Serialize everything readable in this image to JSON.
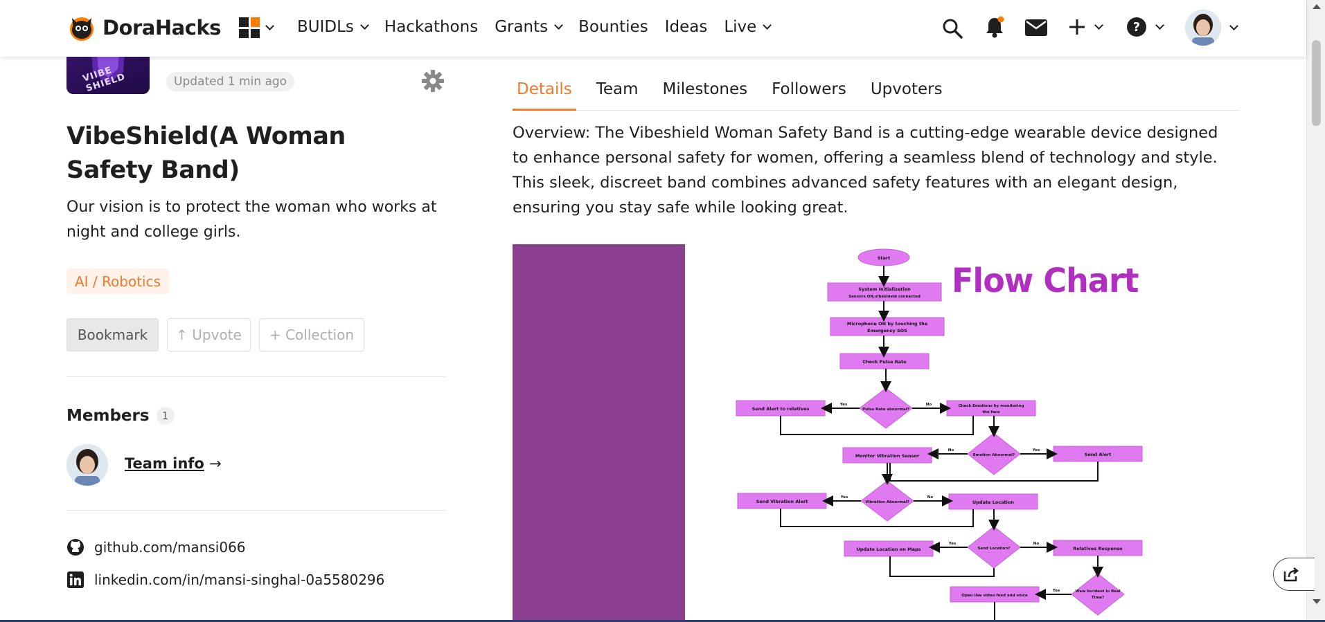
{
  "brand": {
    "name": "DoraHacks"
  },
  "nav": {
    "items": [
      {
        "label": "BUIDLs",
        "has_menu": true
      },
      {
        "label": "Hackathons",
        "has_menu": false
      },
      {
        "label": "Grants",
        "has_menu": true
      },
      {
        "label": "Bounties",
        "has_menu": false
      },
      {
        "label": "Ideas",
        "has_menu": false
      },
      {
        "label": "Live",
        "has_menu": true
      }
    ],
    "icons": [
      "grid-icon",
      "search-icon",
      "bell-icon",
      "mail-icon",
      "plus-icon",
      "help-icon",
      "avatar"
    ]
  },
  "project": {
    "thumb_text": "VIIBE SHIELD",
    "updated": "Updated 1 min ago",
    "title": "VibeShield(A Woman Safety Band)",
    "description": "Our vision is to protect the woman who works at night and college girls.",
    "tag": "AI / Robotics",
    "buttons": {
      "bookmark": "Bookmark",
      "upvote": "↑ Upvote",
      "collection": "+ Collection"
    }
  },
  "members": {
    "title": "Members",
    "count": "1",
    "team_info": "Team info",
    "arrow": "→"
  },
  "links": {
    "github": "github.com/mansi066",
    "linkedin": "linkedin.com/in/mansi-singhal-0a5580296"
  },
  "tabs": [
    {
      "label": "Details",
      "active": true
    },
    {
      "label": "Team",
      "active": false
    },
    {
      "label": "Milestones",
      "active": false
    },
    {
      "label": "Followers",
      "active": false
    },
    {
      "label": "Upvoters",
      "active": false
    }
  ],
  "overview": "Overview: The Vibeshield Woman Safety Band is a cutting-edge wearable device designed to enhance personal safety for women, offering a seamless blend of technology and style. This sleek, discreet band combines advanced safety features with an elegant design, ensuring you stay safe while looking great.",
  "flowchart": {
    "title": "Flow Chart",
    "nodes": {
      "start": "Start",
      "init": "System Initialization",
      "init_sub": "Sensors ON,vibeshield connected",
      "mic1": "Microphone ON by touching the",
      "mic2": "Emergency SOS",
      "pulse": "Check Pulse Rate",
      "pulse_q": "Pulse Rate abnormal?",
      "alert_rel": "Send Alert to relatives",
      "emotion1": "Check Emotions by monitoring",
      "emotion2": "the face",
      "emotion_q": "Emotion Abnormal?",
      "vib_sensor": "Monitor Vibration Sensor",
      "send_alert": "Send Alert",
      "vib_alert": "Send Vibration Alert",
      "vib_q": "Vibration Abnormal?",
      "upd_loc": "Update Location",
      "loc_q": "Send Location?",
      "upd_maps": "Update Location on Maps",
      "rel_resp": "Relatives Response",
      "live_video": "Open live video feed and voice",
      "view_q1": "View Incident in Real",
      "view_q2": "Time?",
      "yes": "Yes",
      "no": "No"
    }
  },
  "colors": {
    "accent": "#f07a2a",
    "flow_node": "#e07af0",
    "purple_block": "#8b3f8f",
    "flow_title": "#b02ec0"
  }
}
